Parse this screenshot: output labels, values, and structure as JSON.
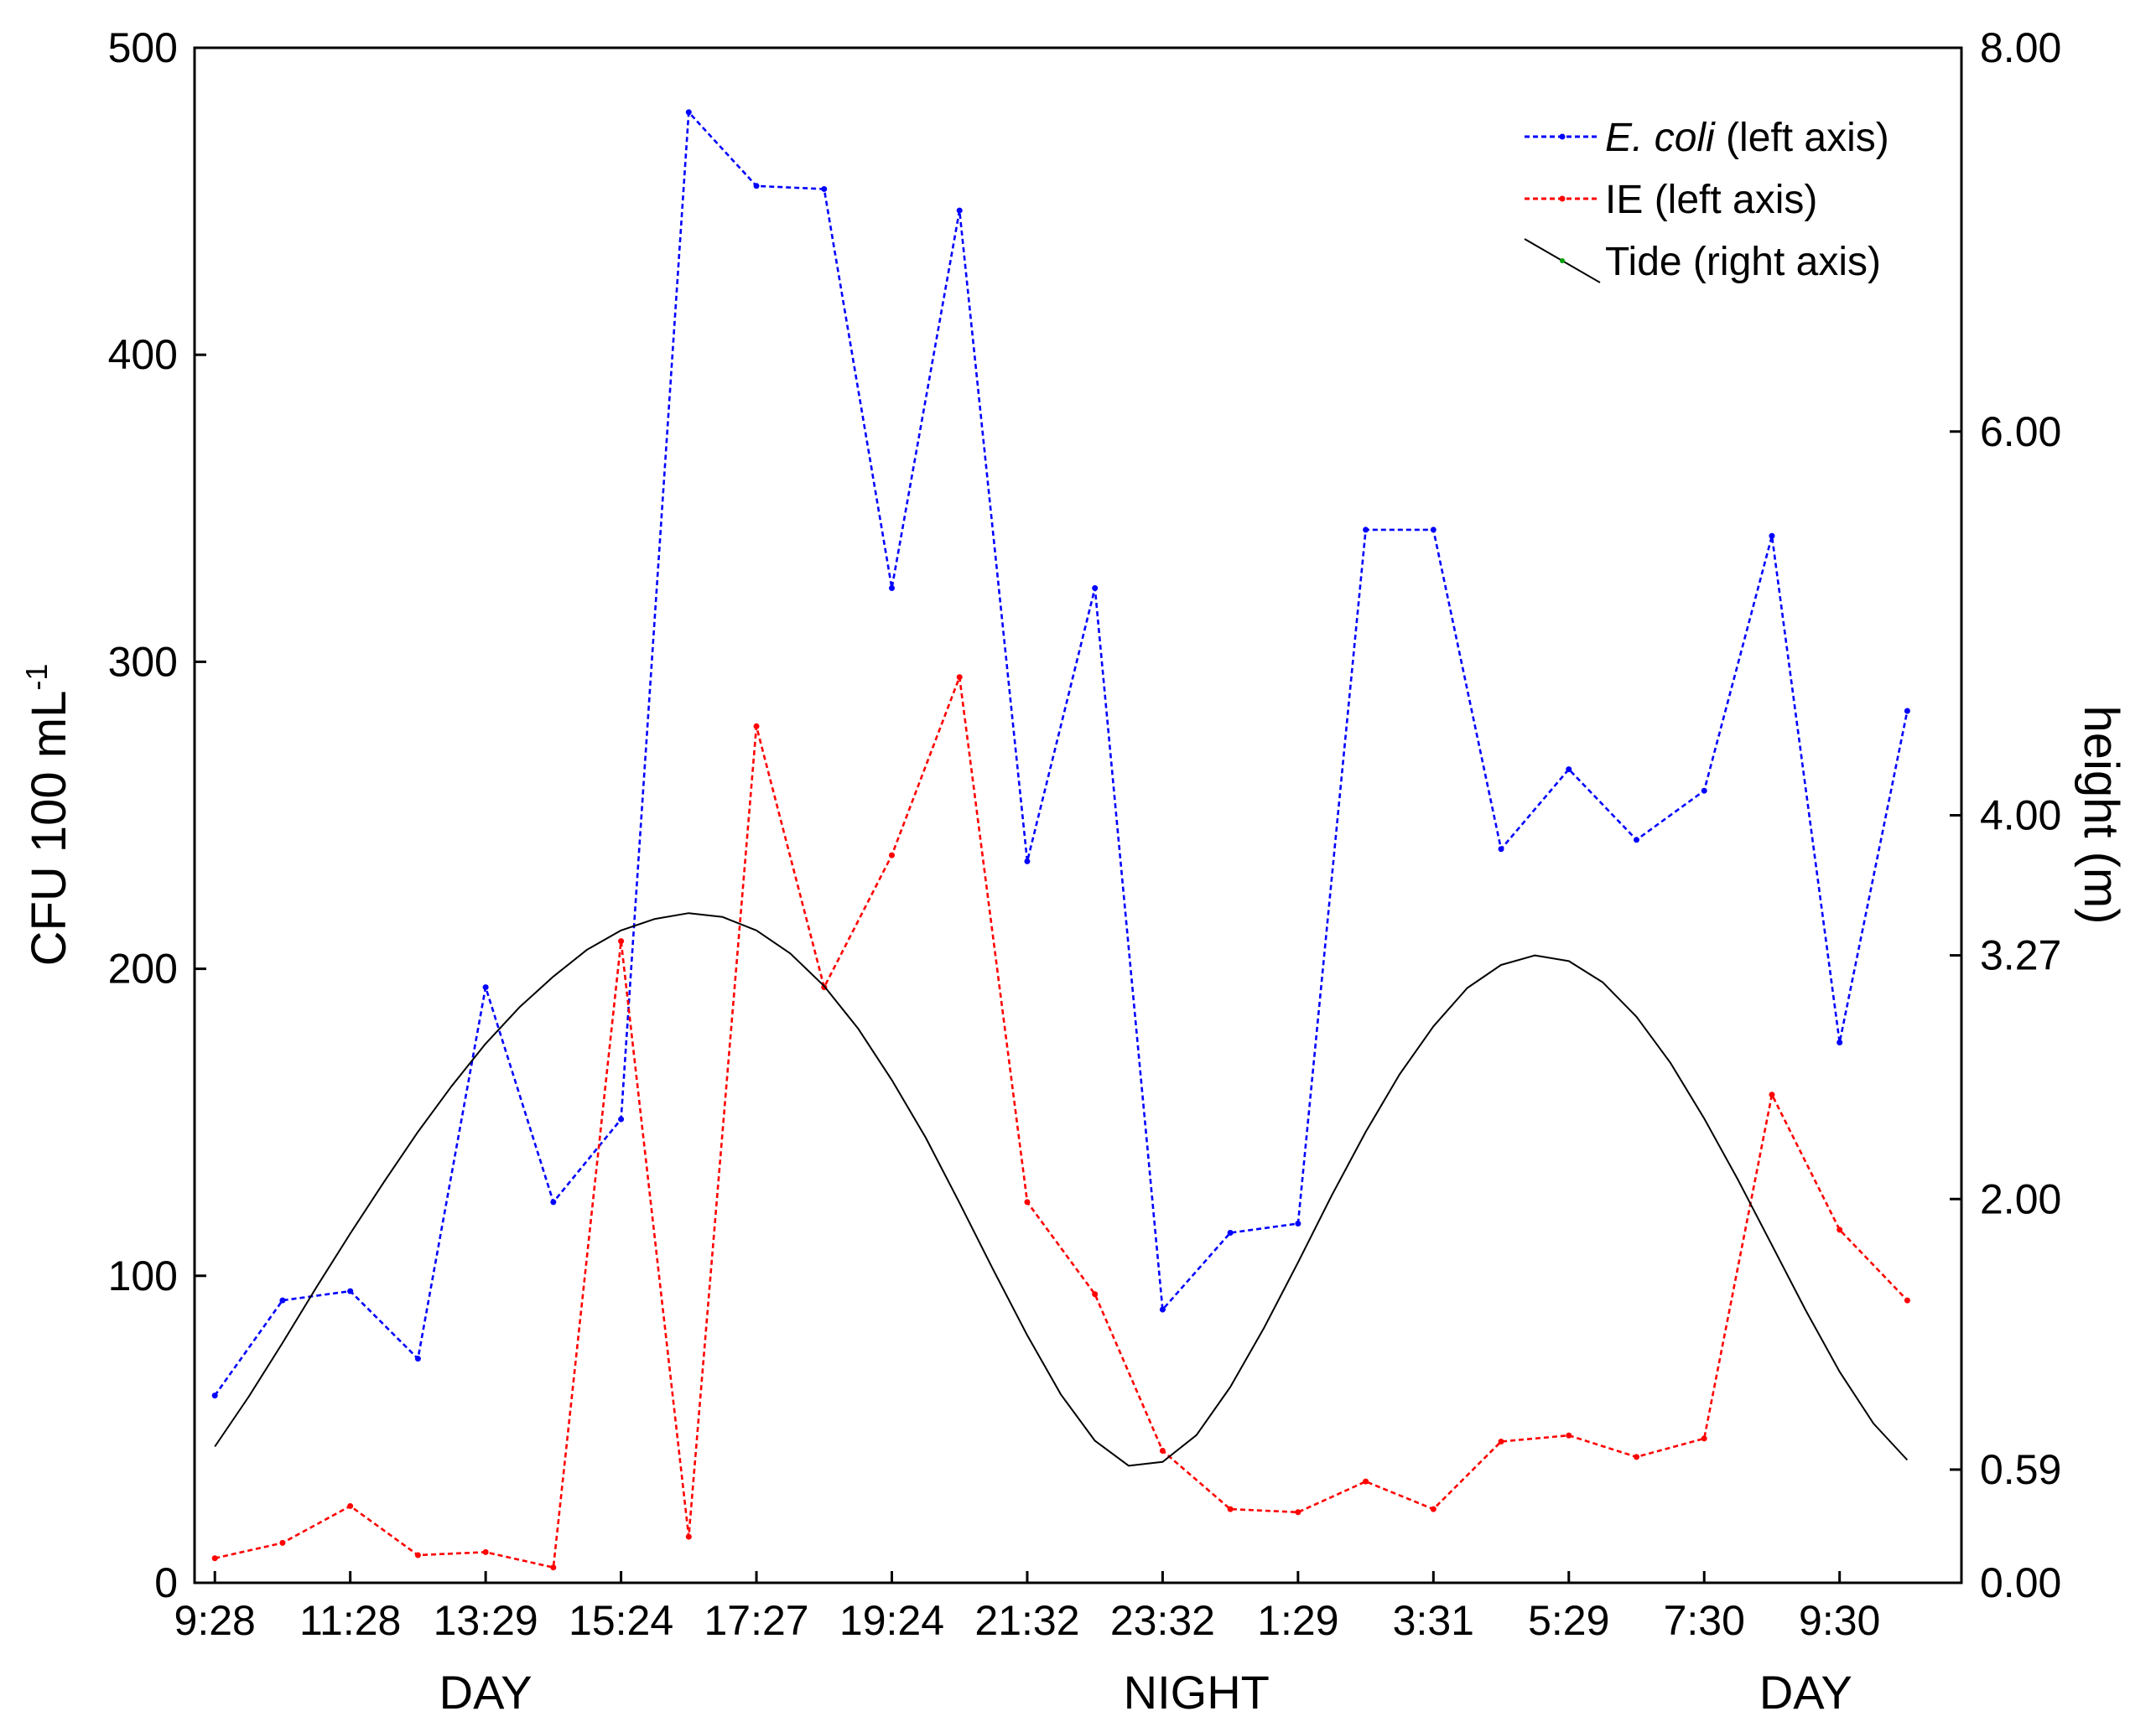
{
  "chart_data": {
    "type": "line",
    "x_tick_labels": [
      "9:28",
      "11:28",
      "13:29",
      "15:24",
      "17:27",
      "19:24",
      "21:32",
      "23:32",
      "1:29",
      "3:31",
      "5:29",
      "7:30",
      "9:30"
    ],
    "x_tick_positions": [
      0,
      2,
      4,
      6,
      8,
      10,
      12,
      14,
      16,
      18,
      20,
      22,
      24
    ],
    "x_range": [
      -0.3,
      25.8
    ],
    "period_labels": [
      {
        "label": "DAY",
        "x": 4
      },
      {
        "label": "NIGHT",
        "x": 14.5
      },
      {
        "label": "DAY",
        "x": 23.5
      }
    ],
    "y_left": {
      "label": "CFU 100 mL",
      "label_superscript": "-1",
      "range": [
        0,
        500
      ],
      "ticks": [
        0,
        100,
        200,
        300,
        400,
        500
      ],
      "tick_labels": [
        "0",
        "100",
        "200",
        "300",
        "400",
        "500"
      ]
    },
    "y_right": {
      "label": "height (m)",
      "range": [
        0,
        8
      ],
      "ticks": [
        0,
        0.59,
        2,
        3.27,
        4,
        6,
        8
      ],
      "tick_labels": [
        "0.00",
        "0.59",
        "2.00",
        "3.27",
        "4.00",
        "6.00",
        "8.00"
      ]
    },
    "series": [
      {
        "name": "E. coli",
        "legend_italic": "E. coli",
        "legend_suffix": " (left axis)",
        "axis": "left",
        "color": "#0000ff",
        "style": "dotted",
        "x": [
          0,
          1,
          2,
          3,
          4,
          5,
          6,
          7,
          8,
          9,
          10,
          11,
          12,
          13,
          14,
          15,
          16,
          17,
          18,
          19,
          20,
          21,
          22,
          23,
          24,
          25
        ],
        "values": [
          61,
          92,
          95,
          73,
          194,
          124,
          151,
          479,
          455,
          454,
          324,
          447,
          235,
          324,
          89,
          114,
          117,
          343,
          343,
          239,
          265,
          242,
          258,
          341,
          176,
          284
        ]
      },
      {
        "name": "IE",
        "legend_italic": "",
        "legend_suffix": "IE  (left axis)",
        "axis": "left",
        "color": "#ff0000",
        "style": "dotted",
        "x": [
          0,
          1,
          2,
          3,
          4,
          5,
          6,
          7,
          8,
          9,
          10,
          11,
          12,
          13,
          14,
          15,
          16,
          17,
          18,
          19,
          20,
          21,
          22,
          23,
          24,
          25
        ],
        "values": [
          8,
          13,
          25,
          9,
          10,
          5,
          209,
          15,
          279,
          194,
          237,
          295,
          124,
          94,
          43,
          24,
          23,
          33,
          24,
          46,
          48,
          41,
          47,
          159,
          115,
          92
        ]
      },
      {
        "name": "Tide",
        "legend_italic": "",
        "legend_suffix": "Tide (right axis)",
        "axis": "right",
        "color": "#000000",
        "style": "solid",
        "x": [
          0,
          0.5,
          1,
          1.5,
          2,
          2.5,
          3,
          3.5,
          4,
          4.5,
          5,
          5.5,
          6,
          6.5,
          7,
          7.5,
          8,
          8.5,
          9,
          9.5,
          10,
          10.5,
          11,
          11.5,
          12,
          12.5,
          13,
          13.5,
          14,
          14.5,
          15,
          15.5,
          16,
          16.5,
          17,
          17.5,
          18,
          18.5,
          19,
          19.5,
          20,
          20.5,
          21,
          21.5,
          22,
          22.5,
          23,
          23.5,
          24,
          24.5,
          25
        ],
        "values": [
          0.71,
          0.97,
          1.25,
          1.54,
          1.82,
          2.09,
          2.35,
          2.59,
          2.81,
          3.0,
          3.16,
          3.3,
          3.4,
          3.46,
          3.49,
          3.47,
          3.4,
          3.28,
          3.11,
          2.89,
          2.62,
          2.32,
          1.98,
          1.63,
          1.29,
          0.98,
          0.74,
          0.61,
          0.63,
          0.77,
          1.02,
          1.33,
          1.67,
          2.02,
          2.35,
          2.65,
          2.9,
          3.1,
          3.22,
          3.27,
          3.24,
          3.13,
          2.95,
          2.71,
          2.42,
          2.1,
          1.76,
          1.42,
          1.1,
          0.83,
          0.64
        ]
      }
    ],
    "grid": false,
    "legend_position": "top-right"
  }
}
